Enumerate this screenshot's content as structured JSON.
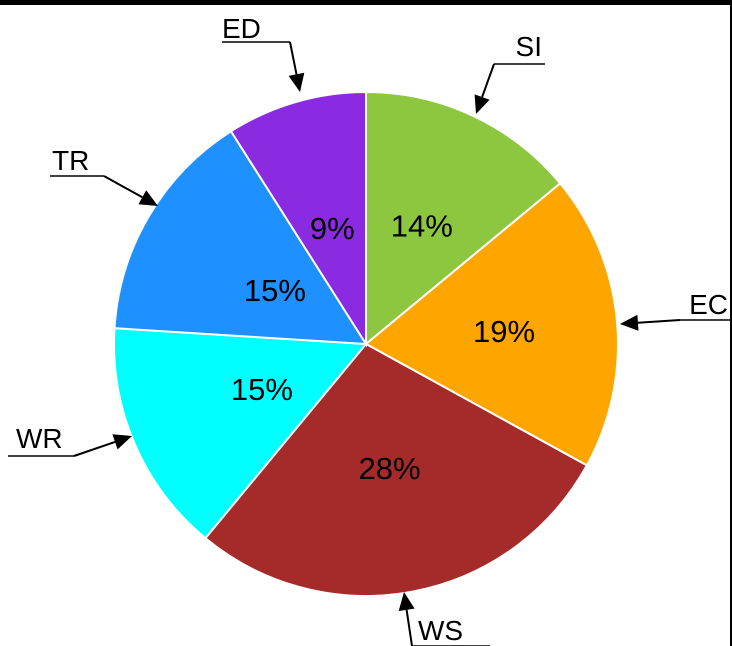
{
  "chart_data": {
    "type": "pie",
    "categories": [
      "SI",
      "EC",
      "WS",
      "WR",
      "TR",
      "ED"
    ],
    "values": [
      14,
      19,
      28,
      15,
      15,
      9
    ],
    "percent_labels": [
      "14%",
      "19%",
      "28%",
      "15%",
      "15%",
      "9%"
    ],
    "colors": [
      "#8dc63f",
      "#ffa500",
      "#a52a2a",
      "#00ffff",
      "#1e90ff",
      "#8a2be2"
    ],
    "start": "top",
    "direction": "clockwise",
    "slice_border": "#ffffff",
    "legend": "callout arrows"
  }
}
